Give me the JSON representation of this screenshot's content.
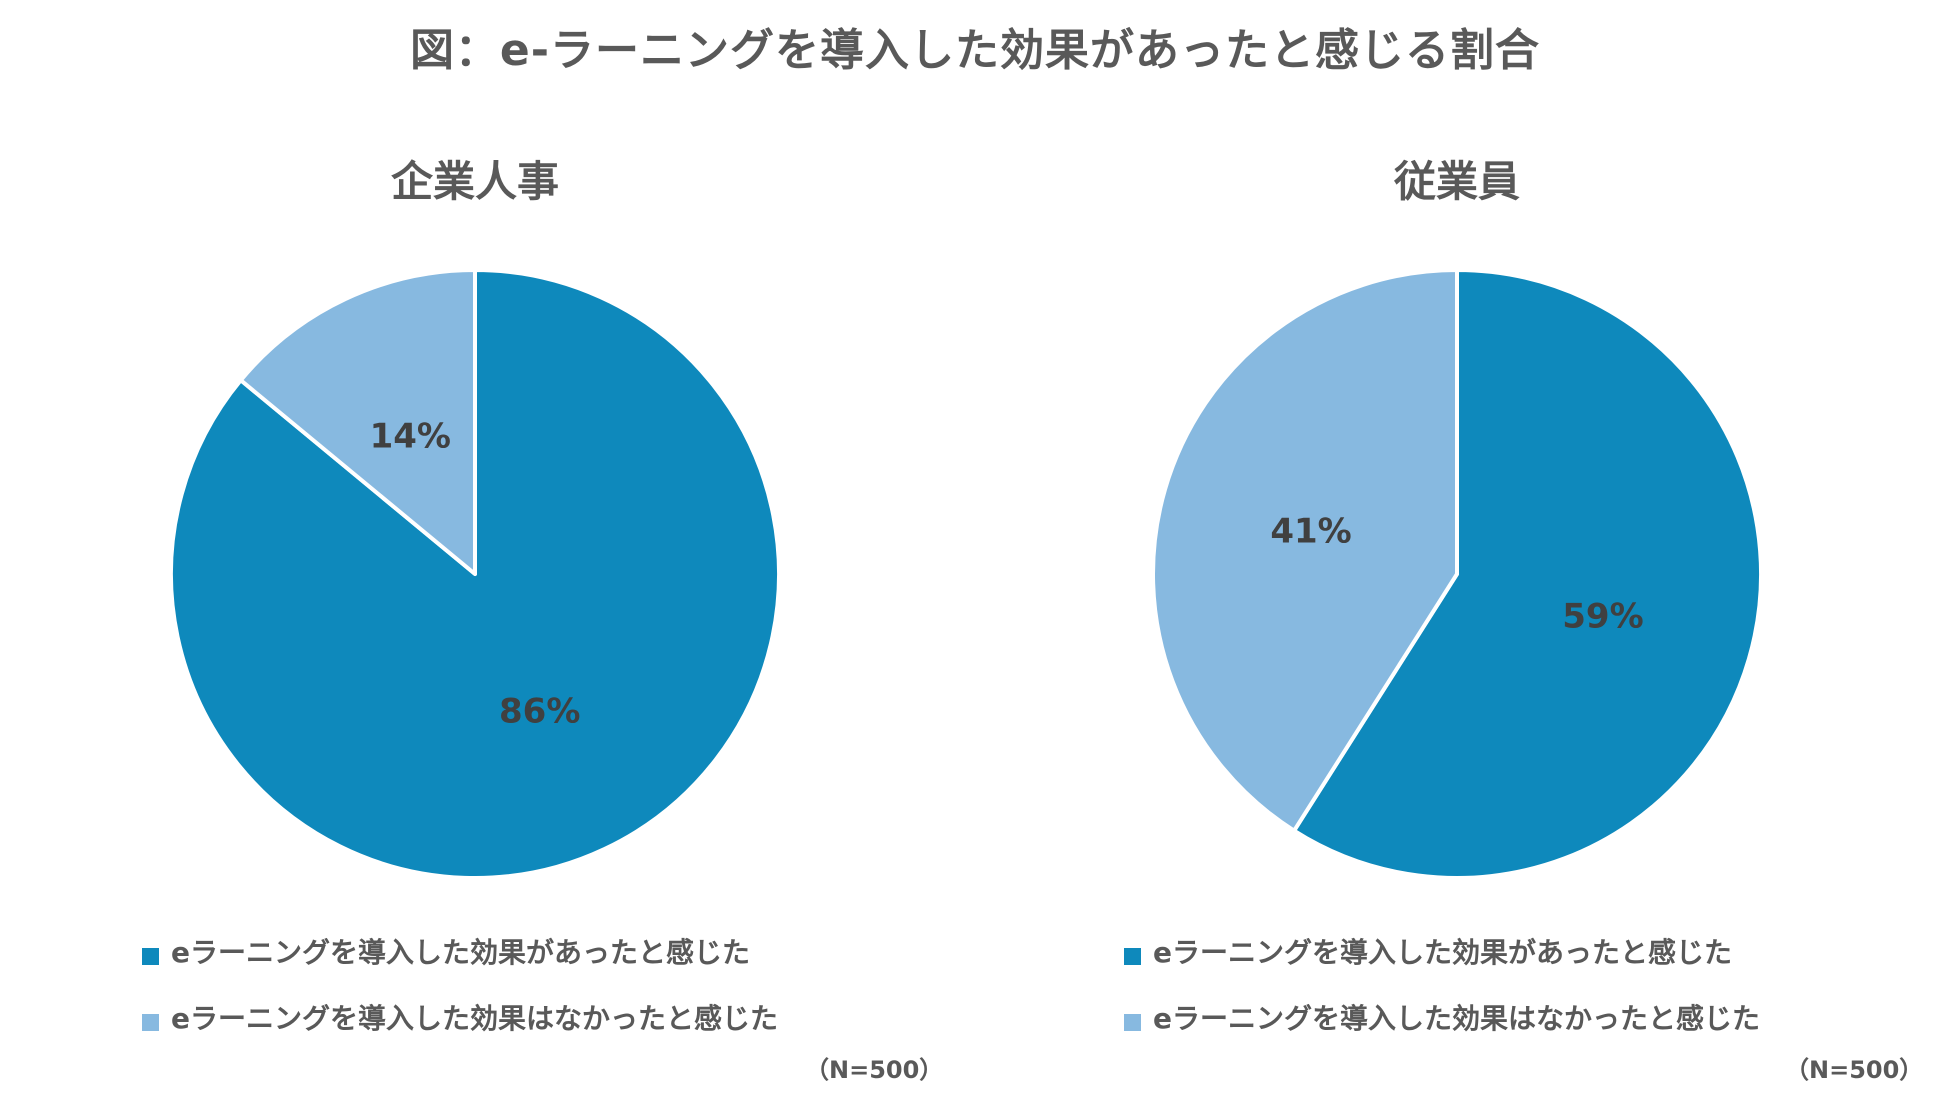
{
  "title": "図：e-ラーニングを導入した効果があったと感じる割合",
  "colors": {
    "effective": "#0E89BC",
    "not_effective": "#87B9E0"
  },
  "chart_data": [
    {
      "type": "pie",
      "title": "企業人事",
      "categories": [
        "eラーニングを導入した効果があったと感じた",
        "eラーニングを導入した効果はなかったと感じた"
      ],
      "values": [
        86,
        14
      ],
      "value_labels": [
        "86%",
        "14%"
      ],
      "legend": "bottom",
      "note": "（N=500）"
    },
    {
      "type": "pie",
      "title": "従業員",
      "categories": [
        "eラーニングを導入した効果があったと感じた",
        "eラーニングを導入した効果はなかったと感じた"
      ],
      "values": [
        59,
        41
      ],
      "value_labels": [
        "59%",
        "41%"
      ],
      "legend": "bottom",
      "note": "（N=500）"
    }
  ]
}
